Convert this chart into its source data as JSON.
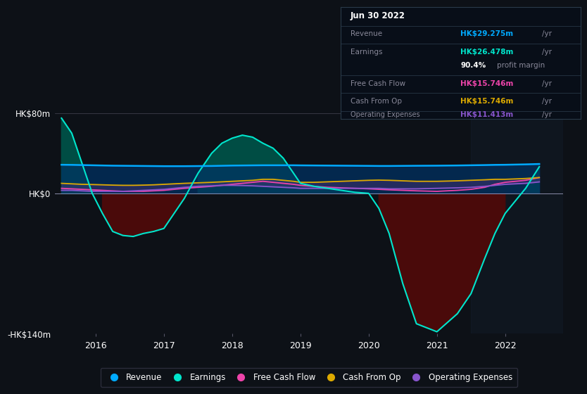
{
  "bg_color": "#0d1117",
  "plot_bg_color": "#0d1117",
  "ylim": [
    -140,
    80
  ],
  "xlim": [
    2015.4,
    2022.85
  ],
  "ytick_vals": [
    -140,
    0,
    80
  ],
  "ytick_labels": [
    "-HK$140m",
    "HK$0",
    "HK$80m"
  ],
  "xtick_years": [
    2016,
    2017,
    2018,
    2019,
    2020,
    2021,
    2022
  ],
  "x_highlight_start": 2021.5,
  "x_fine": [
    2015.5,
    2015.65,
    2015.8,
    2015.95,
    2016.1,
    2016.25,
    2016.4,
    2016.55,
    2016.7,
    2016.85,
    2017.0,
    2017.15,
    2017.3,
    2017.5,
    2017.7,
    2017.85,
    2018.0,
    2018.15,
    2018.3,
    2018.45,
    2018.6,
    2018.75,
    2018.9,
    2019.0,
    2019.2,
    2019.4,
    2019.6,
    2019.8,
    2020.0,
    2020.15,
    2020.3,
    2020.5,
    2020.7,
    2021.0,
    2021.3,
    2021.5,
    2021.7,
    2021.85,
    2022.0,
    2022.3,
    2022.5
  ],
  "earnings": [
    75,
    60,
    30,
    0,
    -20,
    -38,
    -42,
    -43,
    -40,
    -38,
    -35,
    -20,
    -5,
    20,
    40,
    50,
    55,
    58,
    56,
    50,
    45,
    35,
    20,
    10,
    7,
    5,
    3,
    1,
    0,
    -15,
    -40,
    -90,
    -130,
    -138,
    -120,
    -100,
    -65,
    -40,
    -20,
    5,
    26.5
  ],
  "revenue": [
    28.5,
    28.4,
    28.2,
    28.0,
    27.8,
    27.6,
    27.5,
    27.4,
    27.3,
    27.2,
    27.1,
    27.1,
    27.1,
    27.2,
    27.3,
    27.5,
    27.7,
    27.8,
    27.9,
    28.0,
    28.0,
    28.0,
    28.0,
    27.9,
    27.8,
    27.7,
    27.6,
    27.5,
    27.4,
    27.3,
    27.3,
    27.4,
    27.5,
    27.6,
    27.8,
    28.0,
    28.2,
    28.4,
    28.5,
    28.9,
    29.275
  ],
  "fcf": [
    5,
    4.5,
    4,
    3.5,
    3,
    2.5,
    2,
    2,
    2,
    2.5,
    3,
    4,
    5,
    6,
    7,
    8,
    9,
    10,
    11,
    12,
    11,
    10,
    9,
    8,
    7,
    6,
    5.5,
    5,
    4.5,
    4,
    3.5,
    3,
    2.5,
    2,
    3,
    4,
    6,
    9,
    11,
    13,
    15.746
  ],
  "cfop": [
    10,
    9.5,
    9,
    8.8,
    8.5,
    8.2,
    8,
    8,
    8.2,
    8.5,
    9,
    9.5,
    10,
    10.5,
    11,
    11.5,
    12,
    12.5,
    13,
    14,
    14,
    13,
    12,
    11,
    11,
    11.5,
    12,
    12.5,
    13,
    13.2,
    13,
    12.5,
    12,
    12,
    12.5,
    13,
    13.5,
    14,
    14,
    14.8,
    15.746
  ],
  "opex": [
    3,
    3,
    2.5,
    2,
    2,
    2,
    2,
    2.5,
    3,
    3.5,
    4,
    5,
    6,
    7,
    7.5,
    8,
    8,
    7.8,
    7.5,
    7,
    6.5,
    6,
    5.5,
    5,
    5,
    5,
    5,
    5,
    5,
    5,
    4.5,
    4.5,
    4.5,
    5,
    5.5,
    6,
    7,
    8,
    9,
    10,
    11.413
  ],
  "revenue_color": "#00aaff",
  "earnings_color": "#00e5cc",
  "earnings_fill_pos_color": "#004d44",
  "earnings_fill_neg_color": "#4a0a0a",
  "revenue_fill_color": "#003366",
  "fcf_color": "#ee44aa",
  "cfop_color": "#ddaa00",
  "opex_color": "#8855cc",
  "tooltip_bg": "#080e18",
  "tooltip_border_color": "#2a3a4a",
  "tooltip_title": "Jun 30 2022",
  "tooltip_label_color": "#888899",
  "tooltip_revenue_val_color": "#00aaff",
  "tooltip_earnings_val_color": "#00e5cc",
  "tooltip_margin_val_color": "#ffffff",
  "tooltip_fcf_val_color": "#ee44aa",
  "tooltip_cfop_val_color": "#ddaa00",
  "tooltip_opex_val_color": "#8855cc",
  "legend_items": [
    "Revenue",
    "Earnings",
    "Free Cash Flow",
    "Cash From Op",
    "Operating Expenses"
  ],
  "legend_colors": [
    "#00aaff",
    "#00e5cc",
    "#ee44aa",
    "#ddaa00",
    "#8855cc"
  ]
}
